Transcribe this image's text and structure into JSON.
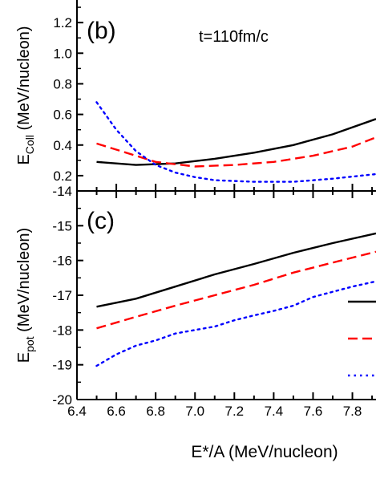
{
  "chart_data": [
    {
      "panel": "(b)",
      "type": "line",
      "annotation": "t=110fm/c",
      "ylabel_main": "E",
      "ylabel_sub": "Coll",
      "ylabel_rest": " (MeV/nucleon)",
      "xlim": [
        6.4,
        7.92
      ],
      "ylim": [
        0.1,
        1.4
      ],
      "yticks": [
        0.2,
        0.4,
        0.6,
        0.8,
        1.0,
        1.2
      ],
      "ytick_labels": [
        "0.2",
        "0.4",
        "0.6",
        "0.8",
        "1.0",
        "1.2"
      ],
      "series": [
        {
          "color": "#000000",
          "dash": "solid",
          "x": [
            6.5,
            6.7,
            6.9,
            7.1,
            7.3,
            7.5,
            7.7,
            7.92
          ],
          "y": [
            0.29,
            0.27,
            0.28,
            0.31,
            0.35,
            0.4,
            0.47,
            0.57
          ]
        },
        {
          "color": "#ff0000",
          "dash": "dashed",
          "x": [
            6.5,
            6.7,
            6.8,
            7.0,
            7.2,
            7.4,
            7.6,
            7.8,
            7.92
          ],
          "y": [
            0.41,
            0.33,
            0.29,
            0.26,
            0.27,
            0.29,
            0.33,
            0.39,
            0.45
          ]
        },
        {
          "color": "#0000ff",
          "dash": "dotted",
          "x": [
            6.5,
            6.6,
            6.7,
            6.8,
            6.9,
            7.0,
            7.1,
            7.3,
            7.5,
            7.7,
            7.92
          ],
          "y": [
            0.68,
            0.5,
            0.36,
            0.27,
            0.22,
            0.19,
            0.17,
            0.16,
            0.16,
            0.18,
            0.21
          ]
        }
      ]
    },
    {
      "panel": "(c)",
      "type": "line",
      "ylabel_main": "E",
      "ylabel_sub": "pot",
      "ylabel_rest": " (MeV/nucleon)",
      "xlabel": "E*/A (MeV/nucleon)",
      "xlim": [
        6.4,
        7.92
      ],
      "ylim": [
        -20,
        -14
      ],
      "xticks": [
        6.4,
        6.6,
        6.8,
        7.0,
        7.2,
        7.4,
        7.6,
        7.8
      ],
      "xtick_labels": [
        "6.4",
        "6.6",
        "6.8",
        "7.0",
        "7.2",
        "7.4",
        "7.6",
        "7.8"
      ],
      "yticks": [
        -20,
        -19,
        -18,
        -17,
        -16,
        -15,
        -14
      ],
      "ytick_labels": [
        "-20",
        "-19",
        "-18",
        "-17",
        "-16",
        "-15",
        "-14"
      ],
      "series": [
        {
          "color": "#000000",
          "dash": "solid",
          "x": [
            6.5,
            6.7,
            6.9,
            7.1,
            7.3,
            7.5,
            7.7,
            7.92
          ],
          "y": [
            -17.33,
            -17.1,
            -16.75,
            -16.4,
            -16.1,
            -15.78,
            -15.5,
            -15.22
          ]
        },
        {
          "color": "#ff0000",
          "dash": "dashed",
          "x": [
            6.5,
            6.7,
            6.9,
            7.1,
            7.3,
            7.5,
            7.7,
            7.92
          ],
          "y": [
            -17.95,
            -17.62,
            -17.3,
            -17.0,
            -16.7,
            -16.35,
            -16.06,
            -15.75
          ]
        },
        {
          "color": "#0000ff",
          "dash": "dotted",
          "x": [
            6.5,
            6.6,
            6.7,
            6.8,
            6.9,
            7.0,
            7.1,
            7.2,
            7.3,
            7.4,
            7.5,
            7.6,
            7.7,
            7.8,
            7.92
          ],
          "y": [
            -19.03,
            -18.7,
            -18.45,
            -18.3,
            -18.1,
            -18.0,
            -17.9,
            -17.72,
            -17.58,
            -17.45,
            -17.3,
            -17.05,
            -16.9,
            -16.75,
            -16.6
          ]
        }
      ]
    }
  ]
}
